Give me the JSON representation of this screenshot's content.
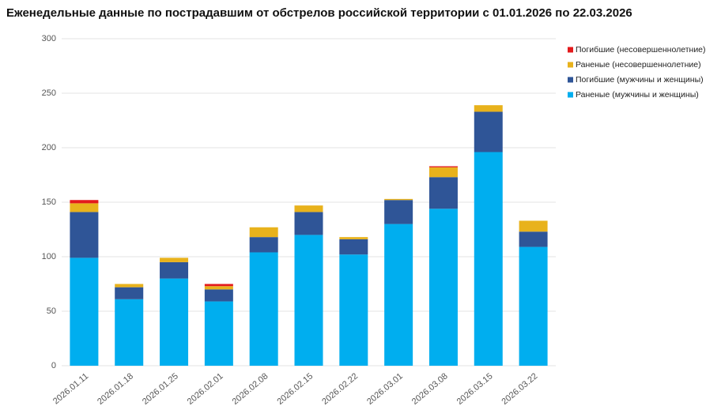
{
  "chart_data": {
    "type": "stacked-bar",
    "title": "Еженедельные данные по пострадавшим от обстрелов российской территории с 01.01.2026 по 22.03.2026",
    "categories": [
      "2026.01.11",
      "2026.01.18",
      "2026.01.25",
      "2026.02.01",
      "2026.02.08",
      "2026.02.15",
      "2026.02.22",
      "2026.03.01",
      "2026.03.08",
      "2026.03.15",
      "2026.03.22"
    ],
    "series": [
      {
        "name": "Раненые (мужчины и женщины)",
        "color": "#00aeef",
        "values": [
          99,
          61,
          80,
          59,
          104,
          120,
          102,
          130,
          144,
          196,
          109
        ]
      },
      {
        "name": "Погибшие (мужчины и женщины)",
        "color": "#2f5597",
        "values": [
          42,
          11,
          15,
          11,
          14,
          21,
          14,
          22,
          29,
          37,
          14
        ]
      },
      {
        "name": "Раненые (несовершеннолетние)",
        "color": "#e8b21c",
        "values": [
          8,
          3,
          4,
          3,
          9,
          6,
          2,
          1,
          9,
          6,
          10
        ]
      },
      {
        "name": "Погибшие (несовершеннолетние)",
        "color": "#e31a1c",
        "values": [
          3,
          0,
          0,
          2,
          0,
          0,
          0,
          0,
          1,
          0,
          0
        ]
      }
    ],
    "ylim": [
      0,
      300
    ],
    "yticks": [
      0,
      50,
      100,
      150,
      200,
      250,
      300
    ],
    "grid": true,
    "legend": "top-right"
  }
}
